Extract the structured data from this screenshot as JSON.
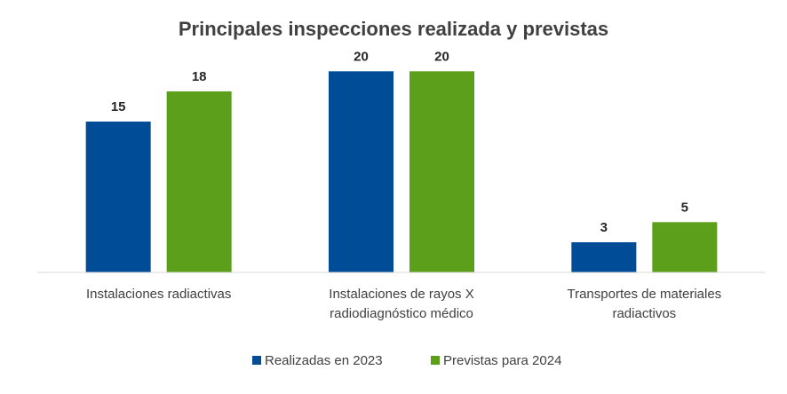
{
  "chart_data": {
    "type": "bar",
    "title": "Principales inspecciones realizada y previstas",
    "categories": [
      [
        "Instalaciones radiactivas"
      ],
      [
        "Instalaciones de rayos X",
        "radiodiagnóstico médico"
      ],
      [
        "Transportes de materiales",
        "radiactivos"
      ]
    ],
    "series": [
      {
        "name": "Realizadas en 2023",
        "color": "#004C97",
        "values": [
          15,
          20,
          3
        ]
      },
      {
        "name": "Previstas para 2024",
        "color": "#5B9F1A",
        "values": [
          18,
          20,
          5
        ]
      }
    ],
    "ylim": [
      0,
      24
    ],
    "grid": false,
    "legend_position": "bottom"
  }
}
